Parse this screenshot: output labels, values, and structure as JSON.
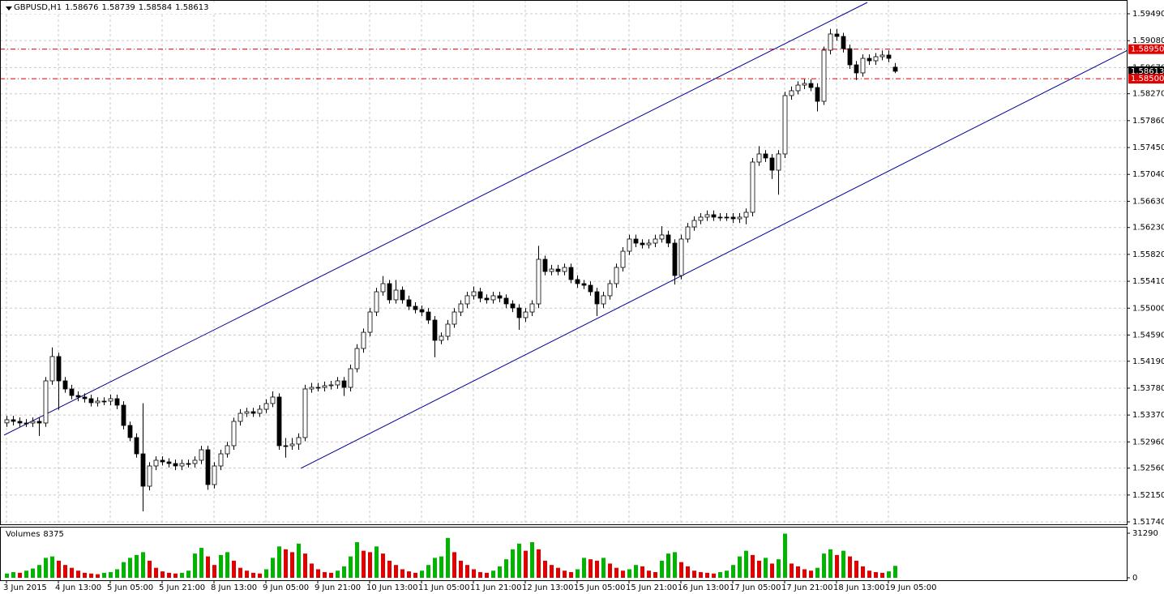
{
  "chart_data": {
    "type": "candlestick",
    "symbol": "GBPUSD,H1",
    "volume_label": "Volumes",
    "categories": [
      "3 Jun 2015",
      null,
      null,
      null,
      null,
      null,
      null,
      null,
      "4 Jun 13:00",
      null,
      null,
      null,
      null,
      null,
      null,
      null,
      "5 Jun 05:00",
      null,
      null,
      null,
      null,
      null,
      null,
      null,
      "5 Jun 21:00",
      null,
      null,
      null,
      null,
      null,
      null,
      null,
      "8 Jun 13:00",
      null,
      null,
      null,
      null,
      null,
      null,
      null,
      "9 Jun 05:00",
      null,
      null,
      null,
      null,
      null,
      null,
      null,
      "9 Jun 21:00",
      null,
      null,
      null,
      null,
      null,
      null,
      null,
      "10 Jun 13:00",
      null,
      null,
      null,
      null,
      null,
      null,
      null,
      "11 Jun 05:00",
      null,
      null,
      null,
      null,
      null,
      null,
      null,
      "11 Jun 21:00",
      null,
      null,
      null,
      null,
      null,
      null,
      null,
      "12 Jun 13:00",
      null,
      null,
      null,
      null,
      null,
      null,
      null,
      "15 Jun 05:00",
      null,
      null,
      null,
      null,
      null,
      null,
      null,
      "15 Jun 21:00",
      null,
      null,
      null,
      null,
      null,
      null,
      null,
      "16 Jun 13:00",
      null,
      null,
      null,
      null,
      null,
      null,
      null,
      "17 Jun 05:00",
      null,
      null,
      null,
      null,
      null,
      null,
      null,
      "17 Jun 21:00",
      null,
      null,
      null,
      null,
      null,
      null,
      null,
      "18 Jun 13:00",
      null,
      null,
      null,
      null,
      null,
      null,
      null,
      "19 Jun 05:00",
      null
    ],
    "open": [
      1.5325,
      1.53298,
      1.53273,
      1.53248,
      1.53248,
      1.53273,
      1.53248,
      1.53891,
      1.54262,
      1.53891,
      1.53767,
      1.53668,
      1.53644,
      1.53619,
      1.53557,
      1.53582,
      1.53582,
      1.53619,
      1.5352,
      1.53211,
      1.53026,
      1.52778,
      1.52284,
      1.52593,
      1.5268,
      1.52655,
      1.5263,
      1.52593,
      1.5263,
      1.5263,
      1.5268,
      1.5284,
      1.52309,
      1.52593,
      1.52778,
      1.52902,
      1.53273,
      1.53396,
      1.53421,
      1.53396,
      1.53458,
      1.53545,
      1.53644,
      1.52902,
      1.52902,
      1.52927,
      1.53026,
      1.53767,
      1.53792,
      1.53792,
      1.53817,
      1.53829,
      1.53891,
      1.53792,
      1.54076,
      1.54385,
      1.54632,
      1.54941,
      1.5525,
      1.55374,
      1.55127,
      1.55275,
      1.55127,
      1.55028,
      1.54978,
      1.54941,
      1.54818,
      1.54509,
      1.54571,
      1.54756,
      1.54941,
      1.55065,
      1.55189,
      1.5525,
      1.55152,
      1.55127,
      1.55189,
      1.55152,
      1.55065,
      1.55003,
      1.54855,
      1.54941,
      1.55065,
      1.55745,
      1.55559,
      1.55596,
      1.55559,
      1.55621,
      1.55436,
      1.55374,
      1.55349,
      1.5525,
      1.55065,
      1.55189,
      1.55374,
      1.55621,
      1.55868,
      1.56054,
      1.55992,
      1.55967,
      1.55992,
      1.56054,
      1.56116,
      1.55992,
      1.55498,
      1.56054,
      1.56239,
      1.56338,
      1.56388,
      1.56425,
      1.56388,
      1.56388,
      1.56388,
      1.56363,
      1.56388,
      1.56462,
      1.57228,
      1.57352,
      1.5729,
      1.57104,
      1.57352,
      1.58242,
      1.58316,
      1.58402,
      1.58427,
      1.58365,
      1.58155,
      1.58934,
      1.59181,
      1.59144,
      1.58958,
      1.58711,
      1.58588,
      1.5881,
      1.58773,
      1.58835,
      1.5886,
      1.58676
    ],
    "high": [
      1.53358,
      1.53358,
      1.53333,
      1.53308,
      1.53333,
      1.53333,
      1.5395,
      1.544,
      1.5432,
      1.5395,
      1.5383,
      1.5373,
      1.537,
      1.5368,
      1.5364,
      1.5364,
      1.5368,
      1.5368,
      1.5358,
      1.5327,
      1.5309,
      1.5355,
      1.5265,
      1.5274,
      1.5274,
      1.5271,
      1.5269,
      1.5269,
      1.5269,
      1.5274,
      1.529,
      1.529,
      1.5265,
      1.5284,
      1.5296,
      1.5333,
      1.5346,
      1.5348,
      1.5348,
      1.5352,
      1.5361,
      1.5373,
      1.537,
      1.5302,
      1.5302,
      1.5309,
      1.5383,
      1.5386,
      1.5386,
      1.5388,
      1.5389,
      1.5395,
      1.5395,
      1.5414,
      1.5445,
      1.5469,
      1.55,
      1.5531,
      1.5549,
      1.5543,
      1.5543,
      1.5533,
      1.5519,
      1.5509,
      1.5504,
      1.55,
      1.5488,
      1.5463,
      1.5482,
      1.55,
      1.5512,
      1.5525,
      1.5533,
      1.5531,
      1.5521,
      1.5525,
      1.5525,
      1.5521,
      1.5512,
      1.5506,
      1.55,
      1.5512,
      1.5595,
      1.558,
      1.5566,
      1.5566,
      1.5568,
      1.5568,
      1.555,
      1.5543,
      1.5541,
      1.5531,
      1.5525,
      1.5543,
      1.5568,
      1.5593,
      1.5612,
      1.5612,
      1.5605,
      1.5605,
      1.5612,
      1.5625,
      1.5618,
      1.5605,
      1.5612,
      1.563,
      1.564,
      1.5645,
      1.5649,
      1.5649,
      1.5645,
      1.5645,
      1.5645,
      1.5645,
      1.5652,
      1.5729,
      1.5747,
      1.5741,
      1.5735,
      1.5741,
      1.583,
      1.5838,
      1.5846,
      1.5849,
      1.5849,
      1.5843,
      1.5899,
      1.5926,
      1.5926,
      1.592,
      1.5902,
      1.5877,
      1.5887,
      1.5887,
      1.5889,
      1.5893,
      1.5893,
      1.58739
    ],
    "low": [
      1.5319,
      1.53213,
      1.53188,
      1.53188,
      1.53188,
      1.5305,
      1.5319,
      1.5383,
      1.5345,
      1.5371,
      1.5361,
      1.5358,
      1.5356,
      1.535,
      1.535,
      1.5352,
      1.5352,
      1.5346,
      1.5315,
      1.5297,
      1.5272,
      1.519,
      1.5222,
      1.5253,
      1.526,
      1.5257,
      1.5253,
      1.5253,
      1.5257,
      1.5257,
      1.5262,
      1.5223,
      1.5225,
      1.5253,
      1.5272,
      1.5284,
      1.5321,
      1.5334,
      1.5334,
      1.5334,
      1.534,
      1.5349,
      1.5284,
      1.5272,
      1.5284,
      1.5284,
      1.5297,
      1.5371,
      1.5373,
      1.5373,
      1.5376,
      1.5377,
      1.5366,
      1.5373,
      1.5402,
      1.5432,
      1.5457,
      1.5488,
      1.5519,
      1.5507,
      1.5507,
      1.5507,
      1.5497,
      1.5492,
      1.5488,
      1.5476,
      1.5425,
      1.5445,
      1.5451,
      1.547,
      1.5488,
      1.55,
      1.5513,
      1.5509,
      1.5507,
      1.5507,
      1.5509,
      1.55,
      1.5494,
      1.5467,
      1.5479,
      1.5488,
      1.55,
      1.555,
      1.555,
      1.555,
      1.555,
      1.5538,
      1.5531,
      1.5529,
      1.5519,
      1.5488,
      1.55,
      1.5513,
      1.5531,
      1.5556,
      1.5581,
      1.5593,
      1.5591,
      1.5591,
      1.5593,
      1.56,
      1.5593,
      1.5536,
      1.5544,
      1.56,
      1.5618,
      1.5628,
      1.5633,
      1.5633,
      1.5633,
      1.5633,
      1.563,
      1.563,
      1.5628,
      1.564,
      1.5717,
      1.5723,
      1.5697,
      1.5673,
      1.5729,
      1.5818,
      1.5826,
      1.5834,
      1.5831,
      1.58,
      1.581,
      1.5887,
      1.5908,
      1.589,
      1.5865,
      1.5848,
      1.5853,
      1.5871,
      1.5871,
      1.5878,
      1.5875,
      1.58584
    ],
    "close": [
      1.53298,
      1.53273,
      1.53248,
      1.53248,
      1.53273,
      1.53248,
      1.53891,
      1.54262,
      1.53891,
      1.53767,
      1.53668,
      1.53644,
      1.53619,
      1.53557,
      1.53582,
      1.53582,
      1.53619,
      1.5352,
      1.53211,
      1.53026,
      1.52778,
      1.52284,
      1.52593,
      1.5268,
      1.52655,
      1.5263,
      1.52593,
      1.5263,
      1.5263,
      1.5268,
      1.5284,
      1.52309,
      1.52593,
      1.52778,
      1.52902,
      1.53273,
      1.53396,
      1.53421,
      1.53396,
      1.53458,
      1.53545,
      1.53644,
      1.52902,
      1.52902,
      1.52927,
      1.53026,
      1.53767,
      1.53792,
      1.53792,
      1.53817,
      1.53829,
      1.53891,
      1.53792,
      1.54076,
      1.54385,
      1.54632,
      1.54941,
      1.5525,
      1.55374,
      1.55127,
      1.55275,
      1.55127,
      1.55028,
      1.54978,
      1.54941,
      1.54818,
      1.54509,
      1.54571,
      1.54756,
      1.54941,
      1.55065,
      1.55189,
      1.5525,
      1.55152,
      1.55127,
      1.55189,
      1.55152,
      1.55065,
      1.55003,
      1.54855,
      1.54941,
      1.55065,
      1.55745,
      1.55559,
      1.55596,
      1.55559,
      1.55621,
      1.55436,
      1.55374,
      1.55349,
      1.5525,
      1.55065,
      1.55189,
      1.55374,
      1.55621,
      1.55868,
      1.56054,
      1.55992,
      1.55967,
      1.55992,
      1.56054,
      1.56116,
      1.55992,
      1.55498,
      1.56054,
      1.56239,
      1.56338,
      1.56388,
      1.56425,
      1.56388,
      1.56388,
      1.56388,
      1.56363,
      1.56388,
      1.56462,
      1.57228,
      1.57352,
      1.5729,
      1.57104,
      1.57352,
      1.58242,
      1.58316,
      1.58402,
      1.58427,
      1.58365,
      1.58155,
      1.58934,
      1.59181,
      1.59144,
      1.58958,
      1.58711,
      1.58588,
      1.5881,
      1.58773,
      1.58835,
      1.5886,
      1.5881,
      1.58613
    ],
    "volumes": [
      3000,
      4000,
      3500,
      5000,
      6500,
      9000,
      14000,
      15000,
      12000,
      9000,
      7000,
      5000,
      3500,
      3000,
      2500,
      3500,
      4000,
      6000,
      11000,
      14000,
      16000,
      18000,
      12000,
      7000,
      4500,
      3500,
      3000,
      3500,
      5000,
      17000,
      21000,
      15000,
      9000,
      16000,
      18000,
      12000,
      7000,
      5000,
      3500,
      3000,
      6000,
      14000,
      22000,
      20000,
      18000,
      24000,
      17000,
      10000,
      6000,
      4000,
      3500,
      5000,
      8000,
      15000,
      25000,
      19000,
      18000,
      22000,
      17000,
      12000,
      9000,
      6000,
      4500,
      3500,
      5000,
      9000,
      14000,
      15000,
      28000,
      18000,
      12000,
      9000,
      6000,
      4000,
      3500,
      5000,
      8000,
      13000,
      20000,
      24000,
      19000,
      25000,
      20000,
      12000,
      9000,
      7000,
      5000,
      4000,
      6000,
      14000,
      13000,
      12000,
      14000,
      10000,
      7000,
      5000,
      6000,
      9000,
      8000,
      5000,
      4000,
      12000,
      17000,
      18000,
      11000,
      8000,
      5000,
      4000,
      3500,
      3000,
      4000,
      5000,
      9000,
      15000,
      19000,
      16000,
      12000,
      14000,
      10000,
      13000,
      31000,
      10000,
      8000,
      6000,
      5000,
      7000,
      17000,
      20000,
      16000,
      19000,
      15000,
      12000,
      8000,
      5000,
      4000,
      3500,
      4500,
      8375
    ],
    "ylim": [
      1.51703,
      1.597
    ],
    "yticks": [
      {
        "value": 1.5949,
        "label": "1.59490"
      },
      {
        "value": 1.5908,
        "label": "1.59080"
      },
      {
        "value": 1.5867,
        "label": "1.58670"
      },
      {
        "value": 1.5827,
        "label": "1.58270"
      },
      {
        "value": 1.5786,
        "label": "1.57860"
      },
      {
        "value": 1.5745,
        "label": "1.57450"
      },
      {
        "value": 1.5704,
        "label": "1.57040"
      },
      {
        "value": 1.5663,
        "label": "1.56630"
      },
      {
        "value": 1.5623,
        "label": "1.56230"
      },
      {
        "value": 1.5582,
        "label": "1.55820"
      },
      {
        "value": 1.5541,
        "label": "1.55410"
      },
      {
        "value": 1.55,
        "label": "1.55000"
      },
      {
        "value": 1.5459,
        "label": "1.54590"
      },
      {
        "value": 1.5419,
        "label": "1.54190"
      },
      {
        "value": 1.5378,
        "label": "1.53780"
      },
      {
        "value": 1.5337,
        "label": "1.53370"
      },
      {
        "value": 1.5296,
        "label": "1.52960"
      },
      {
        "value": 1.5256,
        "label": "1.52560"
      },
      {
        "value": 1.5215,
        "label": "1.52150"
      },
      {
        "value": 1.5174,
        "label": "1.51740"
      }
    ],
    "volume_ylim": [
      0,
      31290
    ],
    "volume_yticks": [
      31290,
      0
    ],
    "grid": true,
    "up_color": "#ffffff",
    "down_color": "#000000",
    "volume_colors": {
      "up": "#00b400",
      "down": "#e00000"
    },
    "levels": [
      {
        "value": 1.5895,
        "label": "1.58950"
      },
      {
        "value": 1.585,
        "label": "1.58500"
      }
    ],
    "level_color": "#e00000",
    "trend_lines": [
      {
        "x": [
          -0.375,
          132.75
        ],
        "y": [
          1.53063,
          1.59663
        ]
      },
      {
        "x": [
          45.375,
          173.375
        ],
        "y": [
          1.52556,
          1.58958
        ]
      }
    ],
    "trend_color": "#000099"
  }
}
